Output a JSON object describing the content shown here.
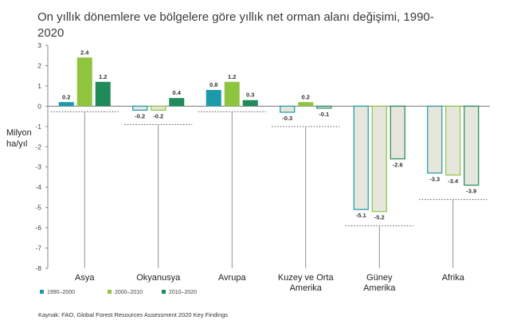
{
  "chart_data": {
    "type": "bar",
    "title": "On yıllık dönemlere ve bölgelere göre yıllık net orman alanı değişimi, 1990-2020",
    "ylabel": "Milyon ha/yıl",
    "ylim": [
      -8,
      3
    ],
    "yticks": [
      3,
      2,
      1,
      0,
      -1,
      -2,
      -3,
      -4,
      -5,
      -6,
      -7,
      -8
    ],
    "categories": [
      "Asya",
      "Okyanusya",
      "Avrupa",
      "Kuzey ve Orta Amerika",
      "Güney Amerika",
      "Afrika"
    ],
    "series": [
      {
        "name": "1990–2000",
        "color": "#1a9aa8",
        "values": [
          0.2,
          -0.2,
          0.8,
          -0.3,
          -5.1,
          -3.3
        ]
      },
      {
        "name": "2000–2010",
        "color": "#8fc43e",
        "values": [
          2.4,
          -0.2,
          1.2,
          0.2,
          -5.2,
          -3.4
        ]
      },
      {
        "name": "2010–2020",
        "color": "#1f8a5a",
        "values": [
          1.2,
          0.4,
          0.3,
          -0.1,
          -2.6,
          -3.9
        ]
      }
    ],
    "value_labels": [
      [
        "0.2",
        "-0.2",
        "0.8",
        "-0.3",
        "-5.1",
        "-3.3"
      ],
      [
        "2.4",
        "-0.2",
        "1.2",
        "0.2",
        "-5.2",
        "-3.4"
      ],
      [
        "1.2",
        "0.4",
        "0.3",
        "-0.1",
        "-2.6",
        "-3.9"
      ]
    ],
    "source": "Kaynak: FAO, Global Forest Resources Assessment 2020 Key Findings",
    "negative_fill": "#e6e6dc",
    "grid": false,
    "legend_position": "bottom-left"
  }
}
